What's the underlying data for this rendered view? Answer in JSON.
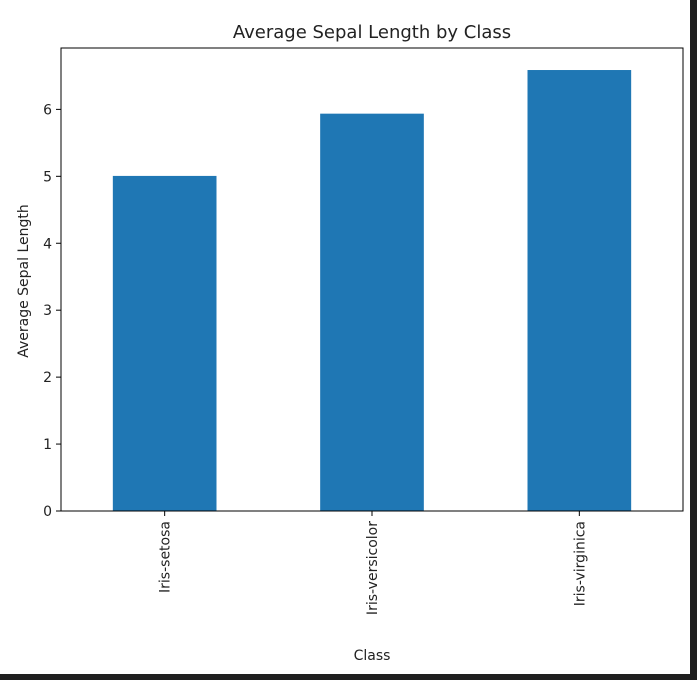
{
  "chart_data": {
    "type": "bar",
    "title": "Average Sepal Length by Class",
    "xlabel": "Class",
    "ylabel": "Average Sepal Length",
    "categories": [
      "Iris-setosa",
      "Iris-versicolor",
      "Iris-virginica"
    ],
    "values": [
      5.006,
      5.936,
      6.588
    ],
    "ylim": [
      0,
      6.917
    ],
    "yticks": [
      0,
      1,
      2,
      3,
      4,
      5,
      6
    ],
    "grid": false,
    "bar_color": "#1f77b4"
  }
}
